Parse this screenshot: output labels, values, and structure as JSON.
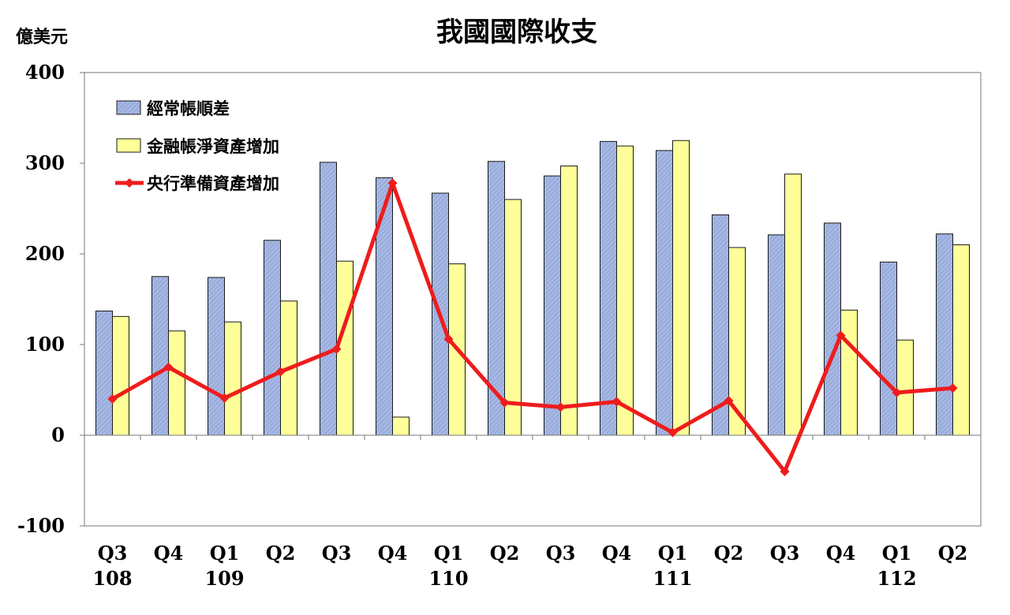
{
  "chart_data": {
    "type": "bar",
    "title": "我國國際收支",
    "ylabel": "億美元",
    "ylim": [
      -100,
      400
    ],
    "yticks": [
      -100,
      0,
      100,
      200,
      300,
      400
    ],
    "grid": false,
    "legend_position": "top-left",
    "categories": [
      {
        "quarter": "Q3",
        "year": "108"
      },
      {
        "quarter": "Q4",
        "year": ""
      },
      {
        "quarter": "Q1",
        "year": "109"
      },
      {
        "quarter": "Q2",
        "year": ""
      },
      {
        "quarter": "Q3",
        "year": ""
      },
      {
        "quarter": "Q4",
        "year": ""
      },
      {
        "quarter": "Q1",
        "year": "110"
      },
      {
        "quarter": "Q2",
        "year": ""
      },
      {
        "quarter": "Q3",
        "year": ""
      },
      {
        "quarter": "Q4",
        "year": ""
      },
      {
        "quarter": "Q1",
        "year": "111"
      },
      {
        "quarter": "Q2",
        "year": ""
      },
      {
        "quarter": "Q3",
        "year": ""
      },
      {
        "quarter": "Q4",
        "year": ""
      },
      {
        "quarter": "Q1",
        "year": "112"
      },
      {
        "quarter": "Q2",
        "year": ""
      }
    ],
    "series": [
      {
        "name": "經常帳順差",
        "type": "bar",
        "color": "#9bb0dd",
        "values": [
          137,
          175,
          174,
          215,
          301,
          284,
          267,
          302,
          286,
          324,
          314,
          243,
          221,
          234,
          191,
          222
        ]
      },
      {
        "name": "金融帳淨資產增加",
        "type": "bar",
        "color": "#ffff99",
        "values": [
          131,
          115,
          125,
          148,
          192,
          20,
          189,
          260,
          297,
          319,
          325,
          207,
          288,
          138,
          105,
          210
        ]
      },
      {
        "name": "央行準備資產增加",
        "type": "line",
        "color": "#ee1c1c",
        "values": [
          40,
          75,
          41,
          70,
          95,
          278,
          106,
          36,
          31,
          37,
          3,
          38,
          -40,
          110,
          47,
          52
        ]
      }
    ]
  }
}
